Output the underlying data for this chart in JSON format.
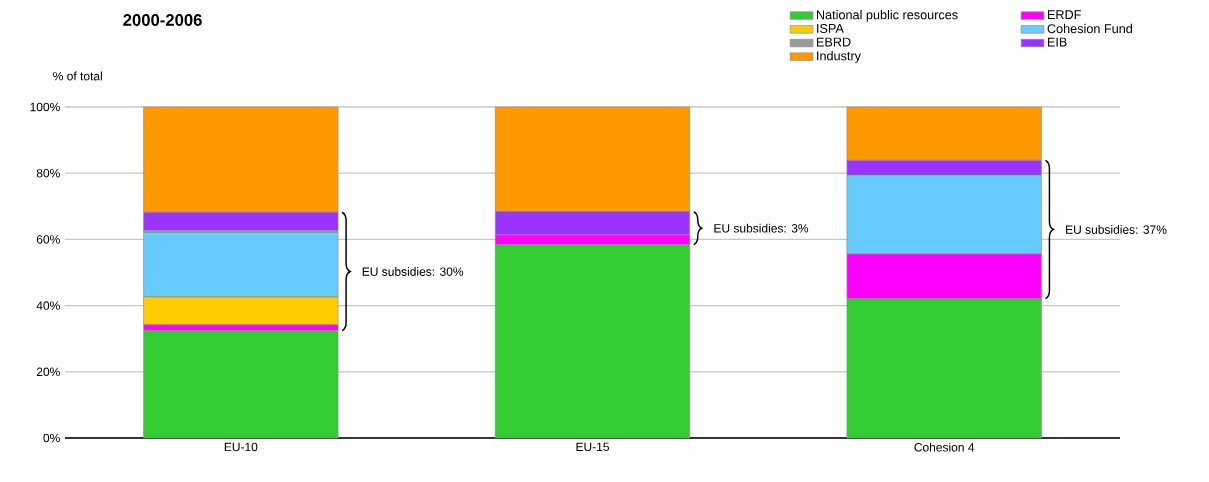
{
  "chart_data": {
    "type": "bar",
    "stacked": true,
    "title": "2000-2006",
    "ylabel": "% of total",
    "categories": [
      "EU-10",
      "EU-15",
      "Cohesion 4"
    ],
    "series": [
      {
        "name": "National public resources",
        "color": "#33cc33",
        "values": [
          32.4,
          58.4,
          42.1
        ]
      },
      {
        "name": "ERDF",
        "color": "#ff00ff",
        "values": [
          1.8,
          3.0,
          13.5
        ]
      },
      {
        "name": "ISPA",
        "color": "#ffcc00",
        "values": [
          8.4,
          0,
          0
        ]
      },
      {
        "name": "Cohesion Fund",
        "color": "#66ccff",
        "values": [
          19.5,
          0,
          23.8
        ]
      },
      {
        "name": "EBRD",
        "color": "#999999",
        "values": [
          0.6,
          0,
          0
        ]
      },
      {
        "name": "EIB",
        "color": "#9933ff",
        "values": [
          5.5,
          7.0,
          4.5
        ]
      },
      {
        "name": "Industry",
        "color": "#ff9900",
        "values": [
          31.8,
          31.6,
          16.1
        ]
      }
    ],
    "ylim": [
      0,
      100
    ],
    "yticks": [
      {
        "value": 0,
        "label": "0%"
      },
      {
        "value": 20,
        "label": "20%"
      },
      {
        "value": 40,
        "label": "40%"
      },
      {
        "value": 60,
        "label": "60%"
      },
      {
        "value": 80,
        "label": "80%"
      },
      {
        "value": 100,
        "label": "100%"
      }
    ],
    "grid": "y",
    "legend": "top right",
    "annotations": [
      "EU subsidies: 30%",
      "EU subsidies: 3%",
      "EU subsidies: 37%"
    ]
  }
}
